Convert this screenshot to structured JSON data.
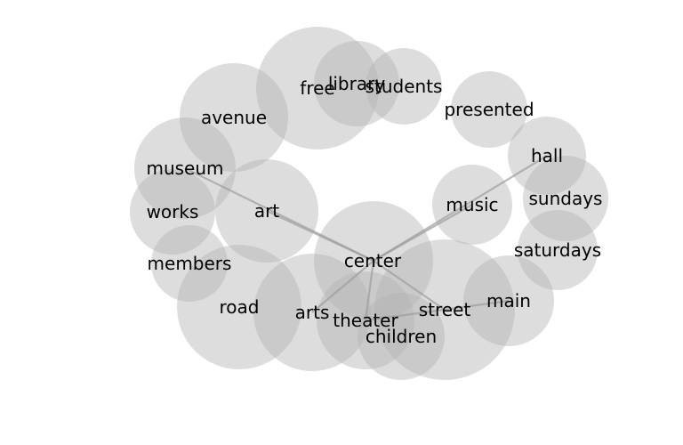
{
  "words": {
    "free": "free",
    "library": "library",
    "students": "students",
    "avenue": "avenue",
    "presented": "presented",
    "hall": "hall",
    "museum": "museum",
    "sundays": "sundays",
    "works": "works",
    "art": "art",
    "music": "music",
    "saturdays": "saturdays",
    "members": "members",
    "center": "center",
    "main": "main",
    "road": "road",
    "arts": "arts",
    "theater": "theater",
    "street": "street",
    "children": "children"
  },
  "edges": [
    [
      "center",
      "museum"
    ],
    [
      "center",
      "art"
    ],
    [
      "center",
      "music"
    ],
    [
      "center",
      "hall"
    ],
    [
      "center",
      "arts"
    ],
    [
      "center",
      "theater"
    ],
    [
      "center",
      "street"
    ],
    [
      "theater",
      "main"
    ]
  ]
}
